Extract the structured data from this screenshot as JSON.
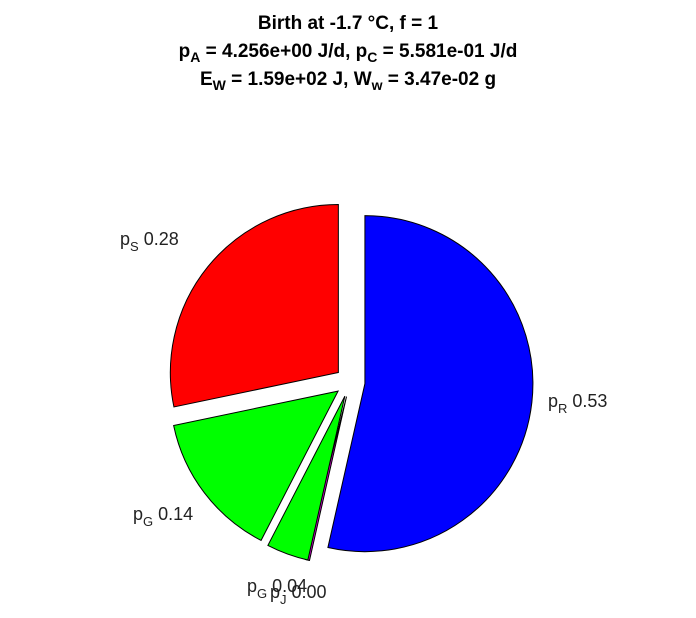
{
  "title": {
    "line1": "Birth at -1.7 °C, f = 1",
    "line2": {
      "pA_sym": "p",
      "pA_sub": "A",
      "pA_val": " = 4.256e+00 J/d, ",
      "pC_sym": "p",
      "pC_sub": "C",
      "pC_val": " = 5.581e-01 J/d"
    },
    "line3": {
      "EW_sym": "E",
      "EW_sub": "W",
      "EW_val": " = 1.59e+02 J, ",
      "Ww_sym": "W",
      "Ww_sub": "w",
      "Ww_val": " = 3.47e-02 g"
    }
  },
  "chart_data": {
    "type": "pie",
    "exploded": true,
    "slices": [
      {
        "sym": "p",
        "sub": "R",
        "value": 0.53,
        "label_value": "0.53",
        "color": "#0000FF"
      },
      {
        "sym": "p",
        "sub": "J",
        "value": 0.0,
        "label_value": "0.00",
        "color": "#CC00CC"
      },
      {
        "sym": "p",
        "sub": "G",
        "value": 0.04,
        "label_value": "0.04",
        "color": "#00FF00"
      },
      {
        "sym": "p",
        "sub": "G",
        "value": 0.14,
        "label_value": "0.14",
        "color": "#00FF00"
      },
      {
        "sym": "p",
        "sub": "S",
        "value": 0.28,
        "label_value": "0.28",
        "color": "#FF0000"
      }
    ],
    "order": "clockwise from 12 o'clock"
  }
}
